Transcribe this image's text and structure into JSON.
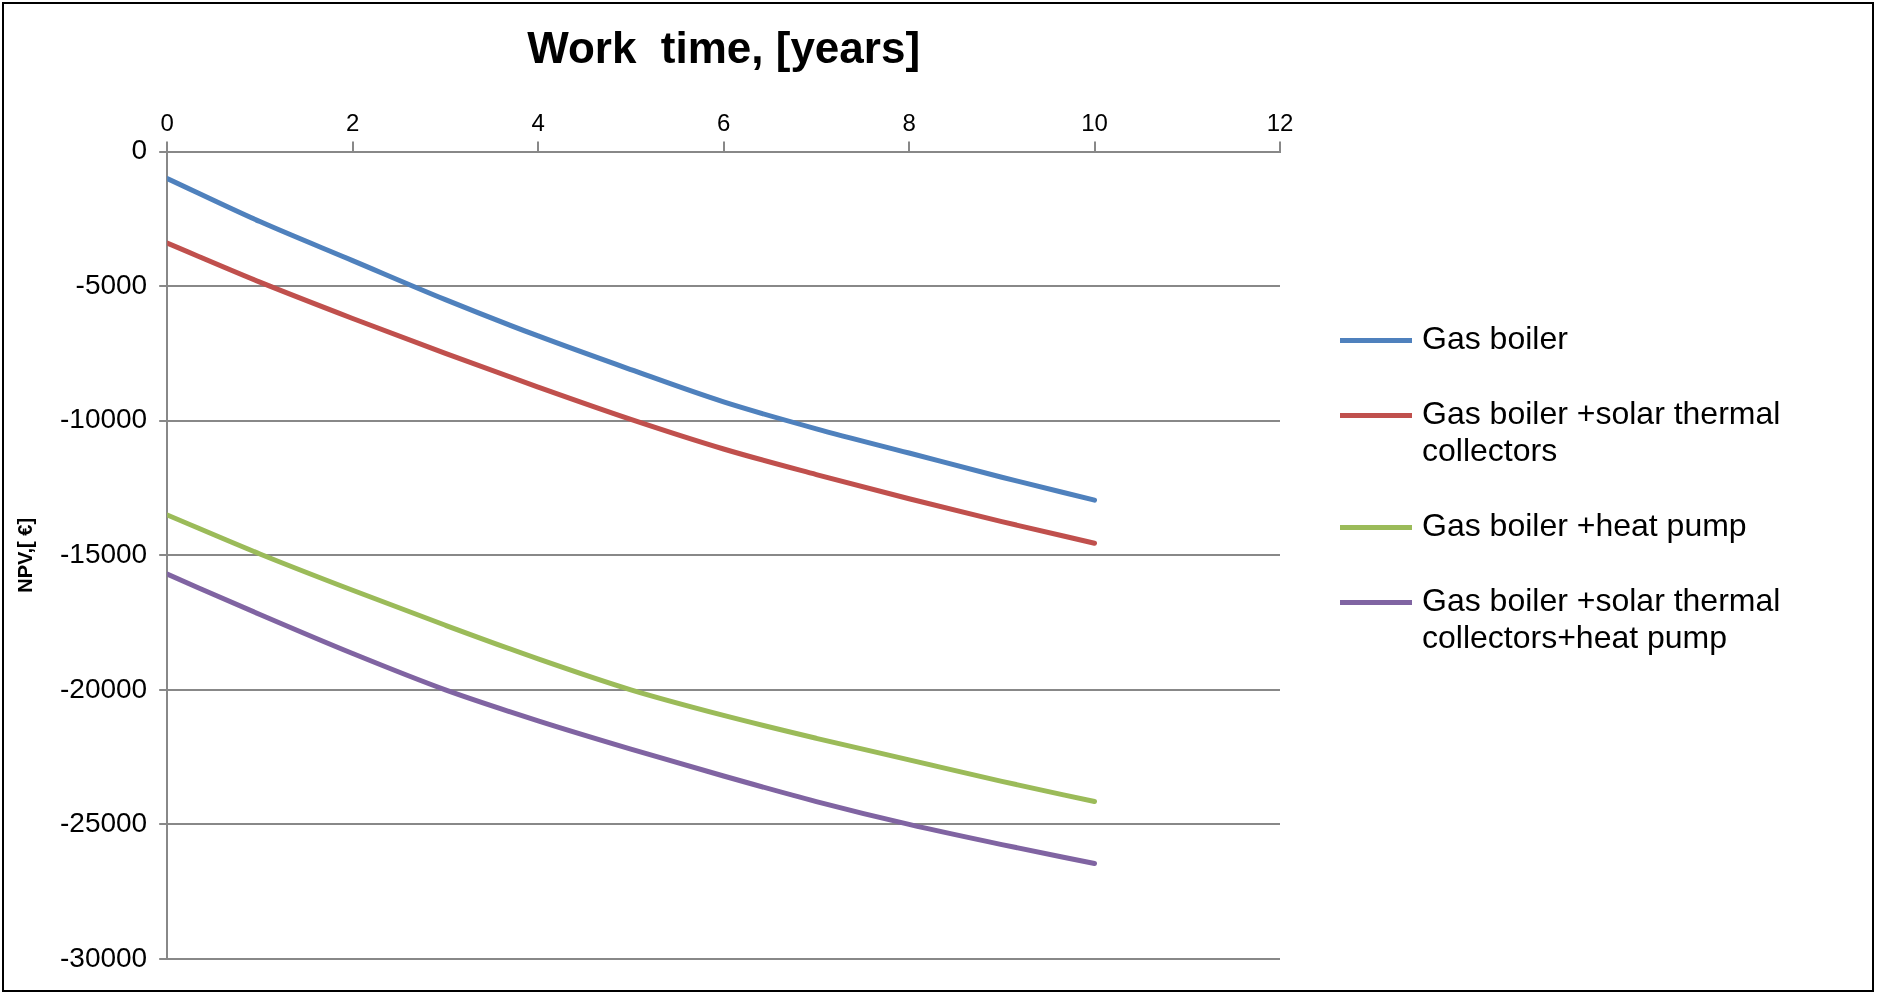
{
  "chart_data": {
    "type": "line",
    "xlabel": "Work  time, [years]",
    "ylabel": "NPV,[ €]",
    "x": [
      0,
      1,
      2,
      3,
      4,
      5,
      6,
      7,
      8,
      9,
      10
    ],
    "xlim": [
      0,
      12
    ],
    "xticks": [
      0,
      2,
      4,
      6,
      8,
      10,
      12
    ],
    "ylim": [
      -30000,
      0
    ],
    "yticks": [
      -30000,
      -25000,
      -20000,
      -15000,
      -10000,
      -5000,
      0
    ],
    "grid": "y",
    "legend": "right",
    "marker": "none",
    "line_style": "solid",
    "series": [
      {
        "name": "Gas boiler",
        "color": "#4f81bd",
        "values": [
          -1000,
          -2600,
          -4050,
          -5500,
          -6850,
          -8100,
          -9300,
          -10300,
          -11200,
          -12100,
          -12950
        ]
      },
      {
        "name": "Gas boiler +solar thermal collectors",
        "color": "#c0504d",
        "values": [
          -3400,
          -4850,
          -6200,
          -7500,
          -8750,
          -9950,
          -11050,
          -12000,
          -12900,
          -13750,
          -14550
        ]
      },
      {
        "name": "Gas boiler +heat pump",
        "color": "#9bbb59",
        "values": [
          -13500,
          -14950,
          -16300,
          -17600,
          -18850,
          -20000,
          -20950,
          -21800,
          -22600,
          -23400,
          -24150
        ]
      },
      {
        "name": "Gas boiler +solar thermal collectors+heat pump",
        "color": "#8064a2",
        "values": [
          -15700,
          -17200,
          -18650,
          -20000,
          -21150,
          -22200,
          -23200,
          -24150,
          -25000,
          -25750,
          -26450
        ]
      }
    ]
  }
}
